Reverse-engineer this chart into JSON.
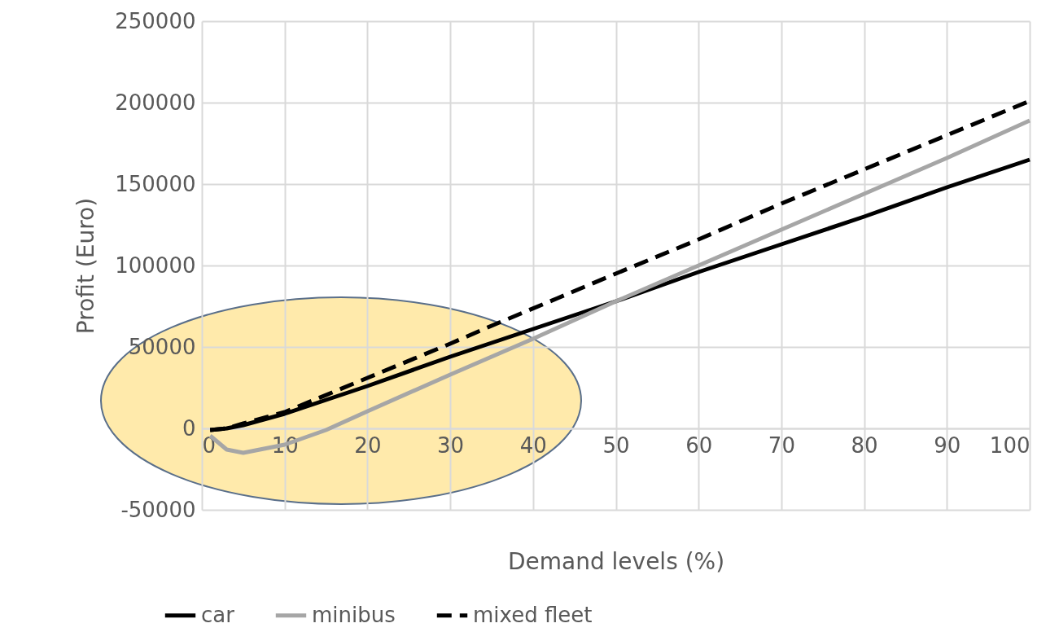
{
  "chart_data": {
    "type": "line",
    "xlabel": "Demand levels (%)",
    "ylabel": "Profit (Euro)",
    "xlim": [
      0,
      100
    ],
    "xticks": [
      0,
      10,
      20,
      30,
      40,
      50,
      60,
      70,
      80,
      90,
      100
    ],
    "ylim": [
      -50000,
      250000
    ],
    "yticks": [
      -50000,
      0,
      50000,
      100000,
      150000,
      200000,
      250000
    ],
    "grid": true,
    "legend": "bottom",
    "marker": "none",
    "series": [
      {
        "name": "car",
        "color": "#000000",
        "line_style": "solid",
        "x": [
          1,
          3,
          5,
          10,
          20,
          30,
          40,
          50,
          60,
          70,
          80,
          90,
          100
        ],
        "values": [
          -1000,
          0,
          2000,
          9000,
          26000,
          44000,
          61000,
          78000,
          96000,
          113000,
          130000,
          148000,
          165000
        ]
      },
      {
        "name": "minibus",
        "color": "#a6a6a6",
        "line_style": "solid",
        "x": [
          1,
          3,
          5,
          10,
          15,
          20,
          30,
          40,
          50,
          60,
          70,
          80,
          90,
          100
        ],
        "values": [
          -4500,
          -13000,
          -15000,
          -10000,
          -1000,
          10500,
          33000,
          55000,
          78000,
          100000,
          122000,
          144000,
          166000,
          189000
        ]
      },
      {
        "name": "mixed fleet",
        "color": "#000000",
        "line_style": "dashed",
        "x": [
          1,
          3,
          5,
          10,
          20,
          30,
          35,
          43,
          50,
          60,
          70,
          80,
          90,
          100
        ],
        "values": [
          -1000,
          0,
          3000,
          10000,
          31000,
          52000,
          63000,
          80000,
          95000,
          116000,
          138000,
          159000,
          180000,
          201000
        ]
      }
    ]
  }
}
